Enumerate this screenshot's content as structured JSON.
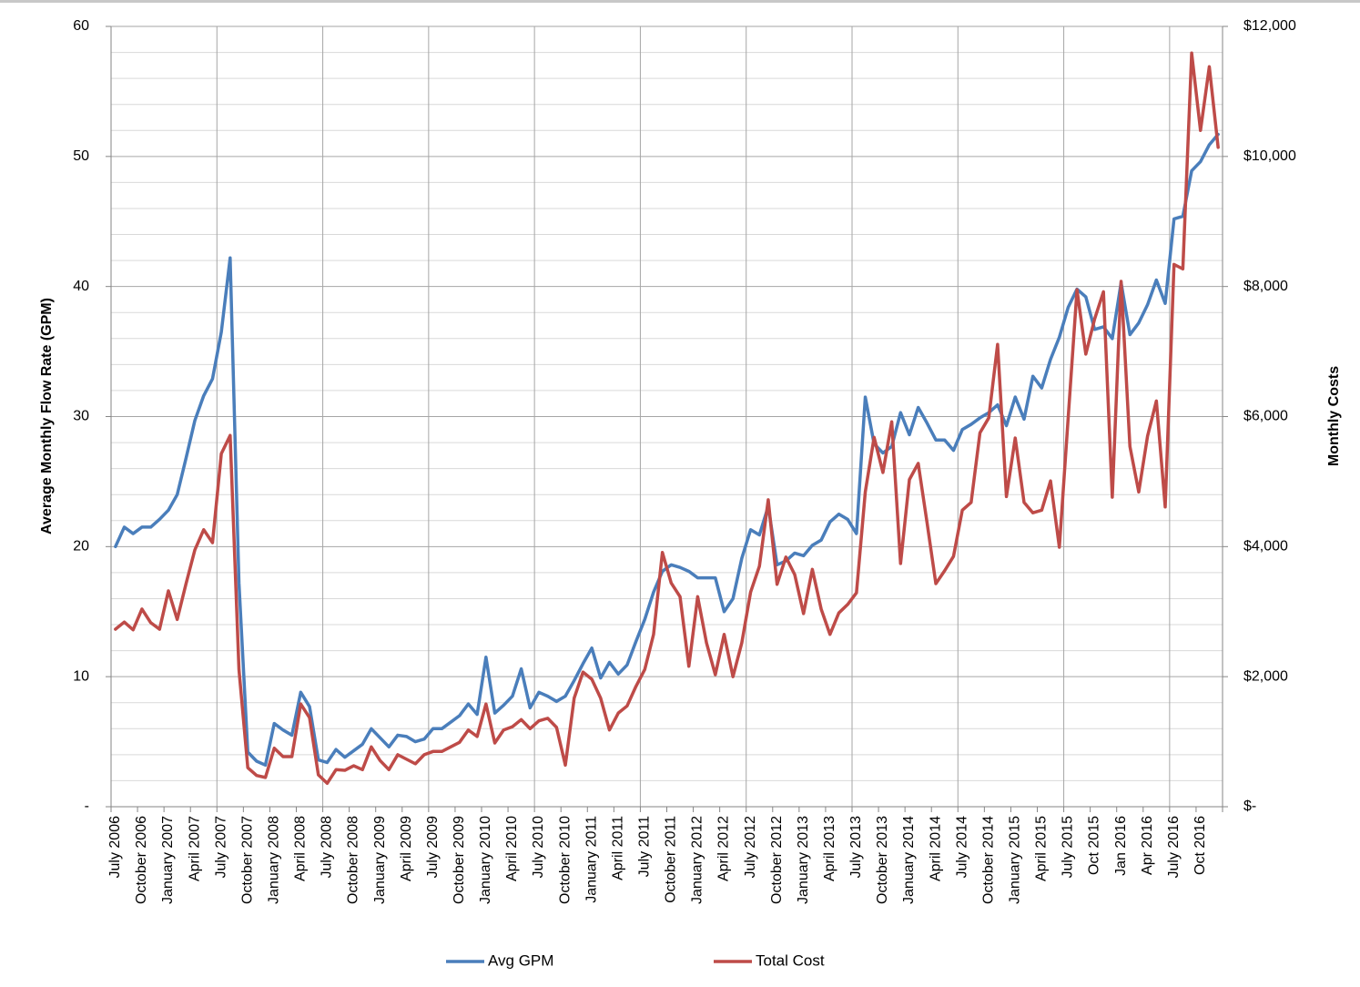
{
  "chart_data": {
    "type": "line",
    "y_axis_label": "Average Monthly Flow Rate (GPM)",
    "y2_axis_label": "Monthly Costs",
    "categories": [
      "July 2006",
      null,
      null,
      "October 2006",
      null,
      null,
      "January 2007",
      null,
      null,
      "April 2007",
      null,
      null,
      "July 2007",
      null,
      null,
      "October 2007",
      null,
      null,
      "January 2008",
      null,
      null,
      "April 2008",
      null,
      null,
      "July 2008",
      null,
      null,
      "October 2008",
      null,
      null,
      "January 2009",
      null,
      null,
      "April 2009",
      null,
      null,
      "July 2009",
      null,
      null,
      "October 2009",
      null,
      null,
      "January 2010",
      null,
      null,
      "April 2010",
      null,
      null,
      "July 2010",
      null,
      null,
      "October 2010",
      null,
      null,
      "January 2011",
      null,
      null,
      "April 2011",
      null,
      null,
      "July 2011",
      null,
      null,
      "October 2011",
      null,
      null,
      "January 2012",
      null,
      null,
      "April 2012",
      null,
      null,
      "July 2012",
      null,
      null,
      "October 2012",
      null,
      null,
      "January 2013",
      null,
      null,
      "April 2013",
      null,
      null,
      "July 2013",
      null,
      null,
      "October 2013",
      null,
      null,
      "January 2014",
      null,
      null,
      "April 2014",
      null,
      null,
      "July 2014",
      null,
      null,
      "October 2014",
      null,
      null,
      "January 2015",
      null,
      null,
      "April 2015",
      null,
      null,
      "July 2015",
      null,
      null,
      "Oct 2015",
      null,
      null,
      "Jan 2016",
      null,
      null,
      "Apr 2016",
      null,
      null,
      "July 2016",
      null,
      null,
      "Oct 2016",
      null,
      null
    ],
    "series": [
      {
        "name": "Avg GPM",
        "color": "#4a7ebb",
        "axis": "y",
        "values": [
          20.0,
          21.5,
          21.0,
          21.5,
          21.5,
          22.1,
          22.8,
          24.0,
          26.8,
          29.7,
          31.6,
          32.9,
          36.5,
          42.2,
          17.2,
          4.2,
          3.5,
          3.2,
          6.4,
          5.9,
          5.5,
          8.8,
          7.7,
          3.6,
          3.4,
          4.4,
          3.8,
          4.3,
          4.8,
          6.0,
          5.3,
          4.6,
          5.5,
          5.4,
          5.0,
          5.2,
          6.0,
          6.0,
          6.5,
          7.0,
          7.9,
          7.1,
          11.5,
          7.2,
          7.8,
          8.5,
          10.6,
          7.6,
          8.8,
          8.5,
          8.1,
          8.5,
          9.7,
          11.0,
          12.2,
          9.9,
          11.1,
          10.2,
          10.9,
          12.7,
          14.4,
          16.5,
          18.1,
          18.6,
          18.4,
          18.1,
          17.6,
          17.6,
          17.6,
          15.0,
          16.0,
          19.1,
          21.3,
          20.9,
          23.1,
          18.6,
          18.9,
          19.5,
          19.3,
          20.1,
          20.5,
          21.9,
          22.5,
          22.1,
          21.0,
          31.5,
          27.9,
          27.2,
          27.7,
          30.3,
          28.6,
          30.7,
          29.5,
          28.2,
          28.2,
          27.4,
          29.0,
          29.4,
          29.9,
          30.3,
          30.9,
          29.3,
          31.5,
          29.8,
          33.1,
          32.2,
          34.4,
          36.1,
          38.4,
          39.8,
          39.2,
          36.7,
          36.9,
          36.0,
          40.3,
          36.3,
          37.2,
          38.6,
          40.5,
          38.7,
          45.2,
          45.4,
          48.9,
          49.6,
          50.9,
          51.7
        ]
      },
      {
        "name": "Total Cost",
        "color": "#be4b48",
        "axis": "y2",
        "values": [
          2730,
          2840,
          2720,
          3040,
          2830,
          2730,
          3320,
          2880,
          3430,
          3950,
          4260,
          4060,
          5430,
          5710,
          2110,
          600,
          480,
          450,
          900,
          770,
          770,
          1580,
          1370,
          490,
          360,
          570,
          560,
          630,
          570,
          920,
          710,
          570,
          800,
          730,
          660,
          800,
          850,
          850,
          920,
          990,
          1180,
          1080,
          1580,
          980,
          1180,
          1230,
          1340,
          1200,
          1320,
          1360,
          1220,
          640,
          1670,
          2070,
          1960,
          1670,
          1180,
          1440,
          1550,
          1850,
          2110,
          2650,
          3910,
          3440,
          3230,
          2160,
          3230,
          2520,
          2030,
          2650,
          2000,
          2520,
          3300,
          3700,
          4720,
          3420,
          3840,
          3570,
          2970,
          3650,
          3040,
          2650,
          2980,
          3110,
          3290,
          4840,
          5680,
          5140,
          5920,
          3740,
          5030,
          5280,
          4370,
          3430,
          3630,
          3850,
          4560,
          4680,
          5750,
          5980,
          7110,
          4770,
          5670,
          4680,
          4520,
          4560,
          5010,
          3990,
          5980,
          7950,
          6960,
          7500,
          7920,
          4760,
          8080,
          5540,
          4840,
          5700,
          6240,
          4610,
          8340,
          8270,
          11590,
          10400,
          11380,
          10140
        ]
      }
    ],
    "ylim": [
      0,
      60
    ],
    "yticks": [
      {
        "value": 0,
        "label": "-"
      },
      10,
      20,
      30,
      40,
      50,
      60
    ],
    "y_minor_ticks": [
      2,
      4,
      6,
      8,
      12,
      14,
      16,
      18,
      22,
      24,
      26,
      28,
      32,
      34,
      36,
      38,
      42,
      44,
      46,
      48,
      52,
      54,
      56,
      58
    ],
    "y2lim": [
      0,
      12000
    ],
    "y2ticks": [
      {
        "value": 0,
        "label": "$-"
      },
      {
        "value": 2000,
        "label": "$2,000"
      },
      {
        "value": 4000,
        "label": "$4,000"
      },
      {
        "value": 6000,
        "label": "$6,000"
      },
      {
        "value": 8000,
        "label": "$8,000"
      },
      {
        "value": 10000,
        "label": "$10,000"
      },
      {
        "value": 12000,
        "label": "$12,000"
      }
    ],
    "grid": true,
    "legend": "bottom"
  }
}
